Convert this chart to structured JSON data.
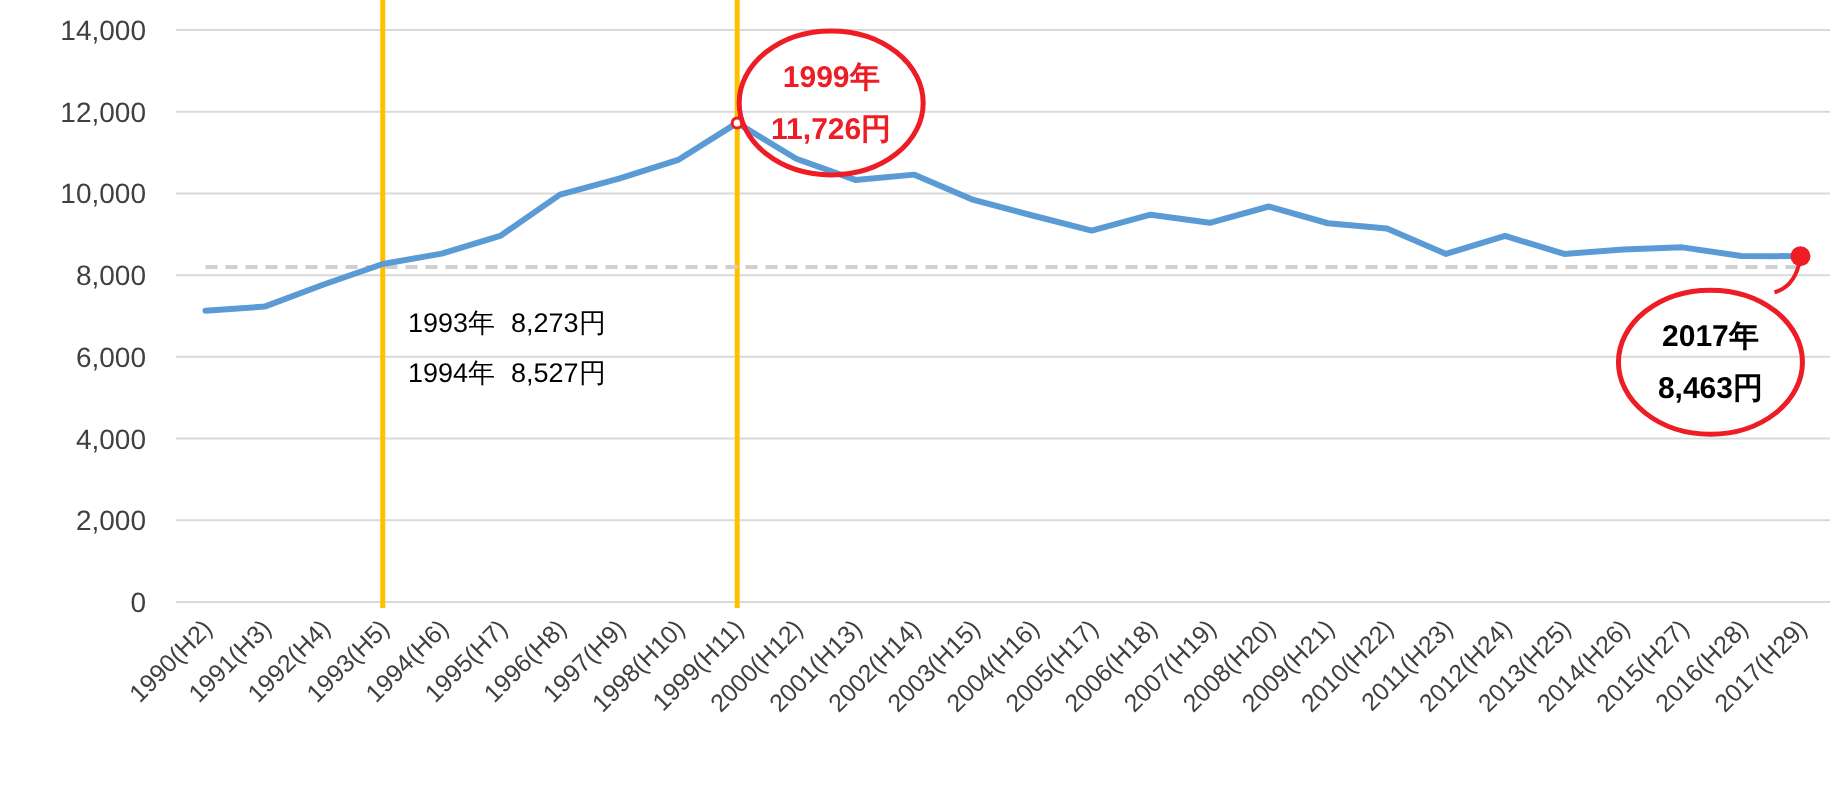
{
  "chart_data": {
    "type": "line",
    "categories": [
      "1990(H2)",
      "1991(H3)",
      "1992(H4)",
      "1993(H5)",
      "1994(H6)",
      "1995(H7)",
      "1996(H8)",
      "1997(H9)",
      "1998(H10)",
      "1999(H11)",
      "2000(H12)",
      "2001(H13)",
      "2002(H14)",
      "2003(H15)",
      "2004(H16)",
      "2005(H17)",
      "2006(H18)",
      "2007(H19)",
      "2008(H20)",
      "2009(H21)",
      "2010(H22)",
      "2011(H23)",
      "2012(H24)",
      "2013(H25)",
      "2014(H26)",
      "2015(H27)",
      "2016(H28)",
      "2017(H29)"
    ],
    "series": [
      {
        "color": "#5b9bd5",
        "values": [
          7130,
          7230,
          7770,
          8273,
          8527,
          8970,
          9970,
          10360,
          10820,
          11726,
          10850,
          10330,
          10460,
          9840,
          9460,
          9090,
          9480,
          9280,
          9680,
          9270,
          9140,
          8520,
          8960,
          8520,
          8630,
          8680,
          8470,
          8463
        ]
      }
    ],
    "ylim": [
      0,
      14000
    ],
    "yticks": [
      {
        "value": 0,
        "label": "0"
      },
      {
        "value": 2000,
        "label": "2,000"
      },
      {
        "value": 4000,
        "label": "4,000"
      },
      {
        "value": 6000,
        "label": "6,000"
      },
      {
        "value": 8000,
        "label": "8,000"
      },
      {
        "value": 10000,
        "label": "10,000"
      },
      {
        "value": 12000,
        "label": "12,000"
      },
      {
        "value": 14000,
        "label": "14,000"
      }
    ],
    "grid": "y",
    "marker": "none",
    "line_style": "solid",
    "ref_lines": [
      {
        "axis": "x",
        "value": "1993(H5)",
        "color": "#ffc000",
        "line_style": "solid"
      },
      {
        "axis": "x",
        "value": "1999(H11)",
        "color": "#ffc000",
        "line_style": "solid"
      },
      {
        "axis": "y",
        "value": 8200,
        "color": "#d0d0d0",
        "line_style": "dashed"
      }
    ],
    "annotations": [
      "1993年  8,273円",
      "1994年  8,527円",
      {
        "text": "1999年\n11,726円",
        "x": "1999(H11)",
        "y": 11726
      },
      {
        "text": "2017年\n8,463円",
        "x": "2017(H29)",
        "y": 8463
      }
    ]
  }
}
